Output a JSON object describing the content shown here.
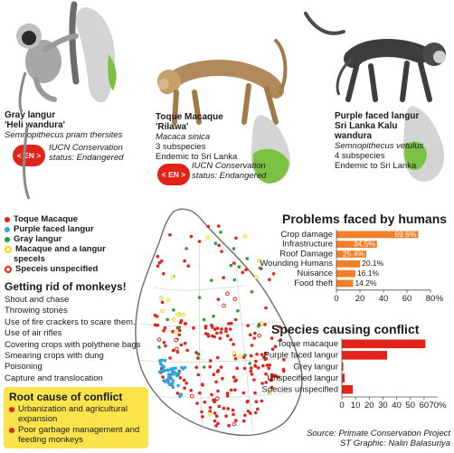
{
  "species": [
    {
      "name1": "Gray langur",
      "name2": "'Heli wandura'",
      "scientific": "Semnopithecus priam thersites",
      "lines": [],
      "badge": "< EN >",
      "iucn1": "IUCN Conservation",
      "iucn2": "status: Endangered"
    },
    {
      "name1": "Toque Macaque",
      "name2": "'Rilawa'",
      "scientific": "Macaca sinica",
      "lines": [
        "3 subspecies",
        "Endemic to Sri Lanka"
      ],
      "badge": "< EN >",
      "iucn1": "IUCN Conservation",
      "iucn2": "status: Endangered"
    },
    {
      "name1": "Purple faced langur",
      "name2": "Sri Lanka Kalu wandura",
      "scientific": "Semnopithecus vetulus",
      "lines": [
        "4 subspecies",
        "Endemic to Sri Lanka"
      ]
    }
  ],
  "map_legend": [
    {
      "label": "Toque Macaque",
      "color": "#e2231a"
    },
    {
      "label": "Purple faced langur",
      "color": "#29a8e0"
    },
    {
      "label": "Gray langur",
      "color": "#2e9e3a"
    },
    {
      "label": "Macaque and a langur",
      "label2": "specels",
      "color": "#f5d90a"
    },
    {
      "label": "Speceis unspecified",
      "color": "#e2231a"
    }
  ],
  "getting_rid": {
    "title": "Getting rid of monkeys!",
    "items": [
      "Shout and chase",
      "Throwing stones",
      "Use of fire crackers to scare them.",
      "Use of air rifles",
      "Covering crops with polythene bags",
      "Smearing crops with dung",
      "Poisoning",
      "Capture and translocation"
    ]
  },
  "root_cause": {
    "title": "Root cause of conflict",
    "items": [
      "Urbanization and agricultural expansion",
      "Poor garbage management and feeding monkeys"
    ]
  },
  "chart_data": [
    {
      "type": "bar",
      "orientation": "horizontal",
      "title": "Problems faced by humans",
      "categories": [
        "Crop damage",
        "Infrastructure",
        "Roof Damage",
        "Wounding Humans",
        "Nuisance",
        "Food theft"
      ],
      "values": [
        69.6,
        34.5,
        25.4,
        20.1,
        16.1,
        14.2
      ],
      "value_labels": [
        "69.6%",
        "34.5%",
        "25.4%",
        "20.1%",
        "16.1%",
        "14.2%"
      ],
      "x_ticks": [
        "0",
        "20",
        "40",
        "60",
        "80"
      ],
      "x_unit": "%",
      "xlim": [
        0,
        80
      ],
      "bar_color": "#f07f2a"
    },
    {
      "type": "bar",
      "orientation": "horizontal",
      "title": "Species causing conflict",
      "categories": [
        "Toque macaque",
        "Purple faced langur",
        "Grey langur",
        "Unspecified langur",
        "Species unspecified"
      ],
      "values": [
        61,
        33,
        1,
        2,
        8
      ],
      "x_ticks": [
        "0",
        "10",
        "20",
        "30",
        "40",
        "50",
        "60"
      ],
      "x_unit": "70%",
      "xlim": [
        0,
        70
      ],
      "bar_color": "#e2231a"
    }
  ],
  "source": "Source: Primate Conservation Project",
  "credit": "ST Graphic: Nalin Balasuriya",
  "colors": {
    "map_green": "#7cc242",
    "map_gray": "#d4d4d4",
    "badge_red": "#e2231a"
  }
}
